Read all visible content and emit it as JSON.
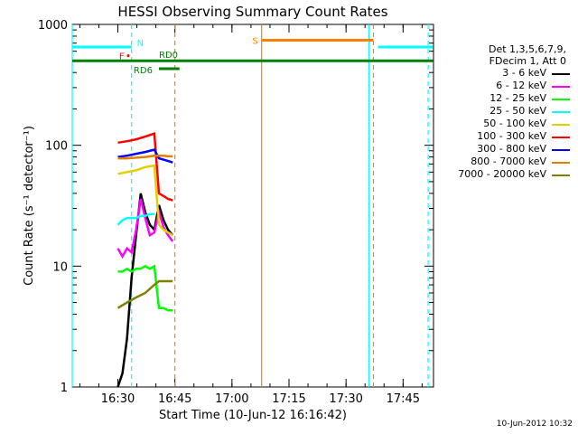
{
  "chart_data": {
    "type": "line",
    "title": "HESSI Observing Summary Count Rates",
    "xlabel": "Start Time (10-Jun-12 16:16:42)",
    "ylabel": "Count Rate (s⁻¹ detector⁻¹)",
    "yscale": "log",
    "ylim": [
      1,
      1000
    ],
    "xlim_minutes": [
      16.3,
      17.8833
    ],
    "yticks": [
      "1",
      "10",
      "100",
      "1000"
    ],
    "xticks": [
      {
        "label": "16:30",
        "t": 16.5
      },
      {
        "label": "16:45",
        "t": 16.75
      },
      {
        "label": "17:00",
        "t": 17.0
      },
      {
        "label": "17:15",
        "t": 17.25
      },
      {
        "label": "17:30",
        "t": 17.5
      },
      {
        "label": "17:45",
        "t": 17.75
      }
    ],
    "legend_header": [
      "Det 1,3,5,6,7,9,",
      "FDecim 1, Att 0"
    ],
    "series": [
      {
        "name": "3 - 6 keV",
        "color": "#000000",
        "points": [
          [
            16.5,
            1.0
          ],
          [
            16.52,
            1.3
          ],
          [
            16.54,
            2.5
          ],
          [
            16.56,
            8
          ],
          [
            16.58,
            18
          ],
          [
            16.6,
            40
          ],
          [
            16.62,
            28
          ],
          [
            16.64,
            22
          ],
          [
            16.66,
            20
          ],
          [
            16.68,
            32
          ],
          [
            16.7,
            24
          ],
          [
            16.72,
            20
          ],
          [
            16.74,
            18
          ]
        ]
      },
      {
        "name": "6 - 12 keV",
        "color": "#ff00ff",
        "points": [
          [
            16.5,
            14
          ],
          [
            16.52,
            12
          ],
          [
            16.54,
            14
          ],
          [
            16.56,
            13
          ],
          [
            16.58,
            20
          ],
          [
            16.6,
            36
          ],
          [
            16.62,
            25
          ],
          [
            16.64,
            18
          ],
          [
            16.66,
            19
          ],
          [
            16.68,
            28
          ],
          [
            16.7,
            21
          ],
          [
            16.72,
            18
          ],
          [
            16.74,
            16
          ]
        ]
      },
      {
        "name": "12 - 25 keV",
        "color": "#00ff00",
        "points": [
          [
            16.5,
            9
          ],
          [
            16.52,
            9
          ],
          [
            16.54,
            9.5
          ],
          [
            16.56,
            9
          ],
          [
            16.58,
            9.5
          ],
          [
            16.6,
            9.5
          ],
          [
            16.62,
            10
          ],
          [
            16.64,
            9.5
          ],
          [
            16.66,
            10
          ],
          [
            16.68,
            4.5
          ],
          [
            16.7,
            4.5
          ],
          [
            16.72,
            4.3
          ],
          [
            16.74,
            4.3
          ]
        ]
      },
      {
        "name": "25 - 50 keV",
        "color": "#00ffff",
        "points": [
          [
            16.5,
            22
          ],
          [
            16.52,
            24
          ],
          [
            16.54,
            25
          ],
          [
            16.56,
            25
          ],
          [
            16.58,
            25
          ],
          [
            16.6,
            26
          ],
          [
            16.62,
            26
          ],
          [
            16.64,
            27
          ],
          [
            16.66,
            27
          ]
        ]
      },
      {
        "name": "50 - 100 keV",
        "color": "#e0d000",
        "points": [
          [
            16.5,
            58
          ],
          [
            16.54,
            60
          ],
          [
            16.58,
            62
          ],
          [
            16.62,
            66
          ],
          [
            16.66,
            68
          ],
          [
            16.68,
            22
          ],
          [
            16.7,
            20
          ],
          [
            16.72,
            19
          ],
          [
            16.74,
            18
          ]
        ]
      },
      {
        "name": "100 - 300 keV",
        "color": "#ff0000",
        "points": [
          [
            16.5,
            105
          ],
          [
            16.54,
            108
          ],
          [
            16.58,
            112
          ],
          [
            16.62,
            118
          ],
          [
            16.66,
            125
          ],
          [
            16.68,
            40
          ],
          [
            16.7,
            38
          ],
          [
            16.72,
            36
          ],
          [
            16.74,
            35
          ]
        ]
      },
      {
        "name": "300 - 800 keV",
        "color": "#0000ff",
        "points": [
          [
            16.5,
            80
          ],
          [
            16.54,
            82
          ],
          [
            16.58,
            85
          ],
          [
            16.62,
            88
          ],
          [
            16.66,
            92
          ],
          [
            16.68,
            78
          ],
          [
            16.7,
            76
          ],
          [
            16.72,
            74
          ],
          [
            16.74,
            72
          ]
        ]
      },
      {
        "name": "800 - 7000 keV",
        "color": "#e08000",
        "points": [
          [
            16.5,
            78
          ],
          [
            16.54,
            78
          ],
          [
            16.58,
            79
          ],
          [
            16.62,
            80
          ],
          [
            16.66,
            82
          ],
          [
            16.68,
            82
          ],
          [
            16.7,
            82
          ],
          [
            16.72,
            81
          ],
          [
            16.74,
            81
          ]
        ]
      },
      {
        "name": "7000 - 20000 keV",
        "color": "#808000",
        "points": [
          [
            16.5,
            4.5
          ],
          [
            16.54,
            5
          ],
          [
            16.58,
            5.5
          ],
          [
            16.62,
            6
          ],
          [
            16.66,
            7
          ],
          [
            16.68,
            7.5
          ],
          [
            16.7,
            7.5
          ],
          [
            16.72,
            7.5
          ],
          [
            16.74,
            7.5
          ]
        ]
      }
    ],
    "flags": [
      {
        "label": "N",
        "color": "#00ffff",
        "y": 650,
        "segments": [
          [
            16.3,
            16.56
          ],
          [
            17.64,
            17.88
          ]
        ]
      },
      {
        "label": "S",
        "color": "#ff8000",
        "y": 740,
        "segments": [
          [
            17.13,
            17.62
          ]
        ]
      },
      {
        "label": "F",
        "color": "#ff0000",
        "y": 550,
        "segments": [
          [
            16.54,
            16.55
          ]
        ]
      },
      {
        "label": "RD0",
        "color": "#008000",
        "y": 500,
        "segments": [
          [
            16.3,
            17.88
          ]
        ]
      },
      {
        "label": "RD6",
        "color": "#008000",
        "y": 430,
        "segments": [
          [
            16.68,
            16.77
          ]
        ]
      }
    ],
    "vlines": [
      {
        "t": 16.3,
        "color": "#00ffff",
        "style": "solid"
      },
      {
        "t": 16.56,
        "color": "#00ffff",
        "style": "dashed"
      },
      {
        "t": 16.75,
        "color": "#ff8000",
        "style": "dashed"
      },
      {
        "t": 17.13,
        "color": "#ff8000",
        "style": "solid"
      },
      {
        "t": 17.6,
        "color": "#00ffff",
        "style": "solid"
      },
      {
        "t": 17.62,
        "color": "#ff8000",
        "style": "dashed"
      },
      {
        "t": 17.86,
        "color": "#00ffff",
        "style": "dashed"
      }
    ]
  },
  "datestamp": "10-Jun-2012 10:32"
}
